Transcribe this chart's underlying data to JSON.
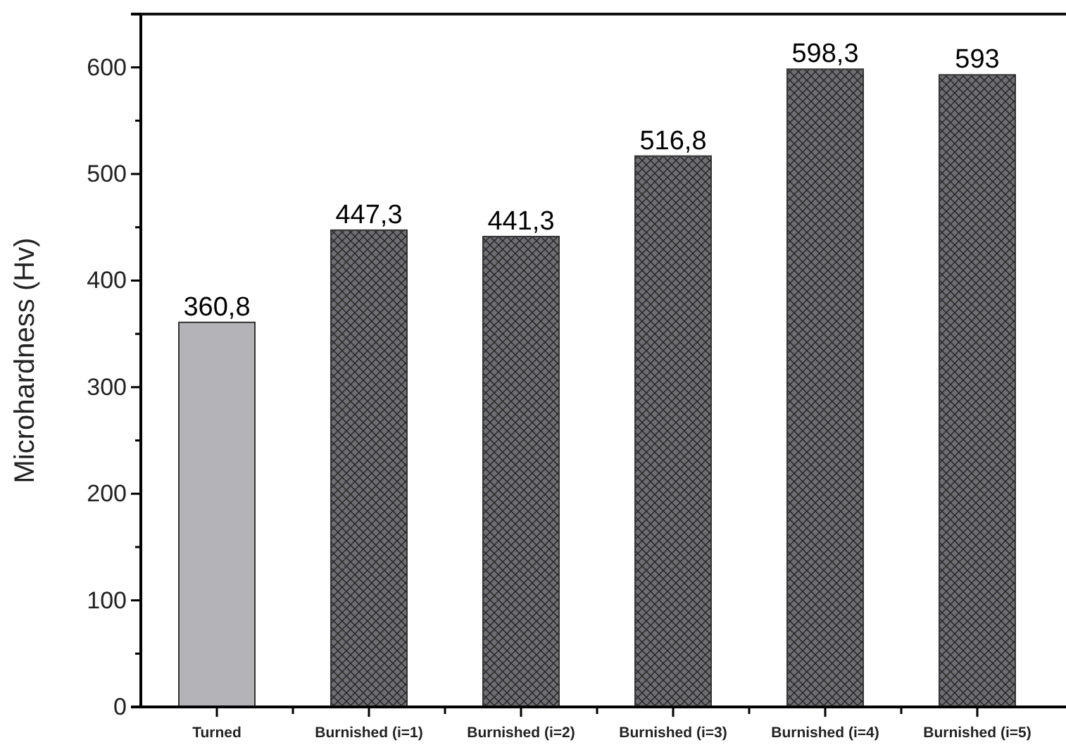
{
  "chart_data": {
    "type": "bar",
    "ylabel": "Microhardness (Hv)",
    "categories": [
      "Turned",
      "Burnished (i=1)",
      "Burnished (i=2)",
      "Burnished (i=3)",
      "Burnished (i=4)",
      "Burnished (i=5)"
    ],
    "values": [
      360.8,
      447.3,
      441.3,
      516.8,
      598.3,
      593
    ],
    "value_labels": [
      "360,8",
      "447,3",
      "441,3",
      "516,8",
      "598,3",
      "593"
    ],
    "colors": [
      "#b4b4b8",
      "#6e6e72",
      "#6e6e72",
      "#6e6e72",
      "#6e6e72",
      "#6e6e72"
    ],
    "ylim": [
      0,
      650
    ],
    "yticks": [
      0,
      100,
      200,
      300,
      400,
      500,
      600
    ],
    "grid": false
  }
}
